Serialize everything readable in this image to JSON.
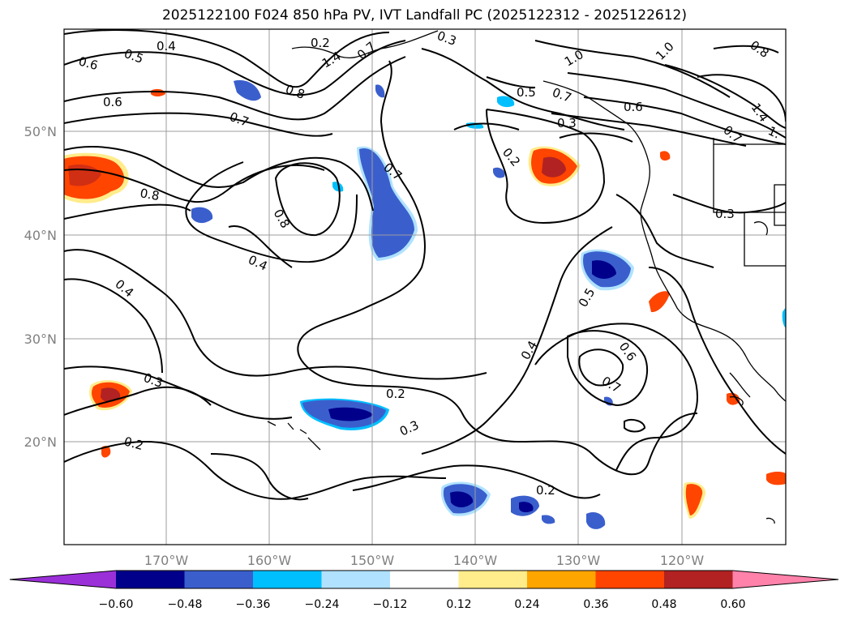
{
  "title": "2025122100 F024 850 hPa PV, IVT Landfall PC (2025122312 - 2025122612)",
  "map": {
    "lat_ticks": [
      "50°N",
      "40°N",
      "30°N",
      "20°N"
    ],
    "lon_ticks": [
      "170°W",
      "160°W",
      "150°W",
      "140°W",
      "130°W",
      "120°W"
    ],
    "contour_labels": [
      "0.4",
      "0.5",
      "0.6",
      "0.6",
      "0.7",
      "0.8",
      "0.8",
      "0.4",
      "0.4",
      "0.3",
      "0.2",
      "0.2",
      "0.3",
      "0.4",
      "0.5",
      "0.6",
      "0.7",
      "0.2",
      "0.2",
      "0.3",
      "0.5",
      "0.7",
      "0.3",
      "0.6",
      "1.0",
      "1.4",
      "0.7",
      "0.8",
      "0.7",
      "1.0",
      "0.8",
      "1.4",
      "0.7",
      "1.",
      "0.3",
      "0.2"
    ]
  },
  "colorbar": {
    "labels": [
      "−0.60",
      "−0.48",
      "−0.36",
      "−0.24",
      "−0.12",
      "0.12",
      "0.24",
      "0.36",
      "0.48",
      "0.60"
    ],
    "colors": [
      "#9b30d9",
      "#00008b",
      "#3a5fcd",
      "#00bfff",
      "#b0e2ff",
      "#ffffff",
      "#ffec8b",
      "#ffa500",
      "#ff4500",
      "#b22222",
      "#ff82ab"
    ]
  }
}
